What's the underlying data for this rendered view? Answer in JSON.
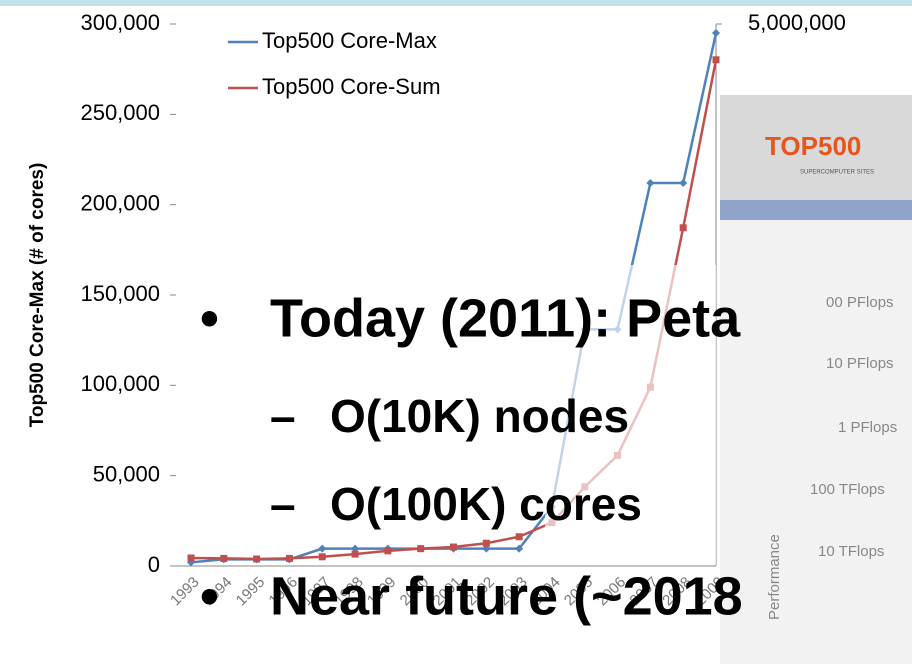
{
  "chart_data": {
    "type": "line",
    "y_label": "Top500 Core-Max (# of cores)",
    "categories": [
      "1993",
      "1994",
      "1995",
      "1996",
      "1997",
      "1998",
      "1999",
      "2000",
      "2001",
      "2002",
      "2003",
      "2004",
      "2005",
      "2006",
      "2007",
      "2008",
      "2009"
    ],
    "series": [
      {
        "name": "Top500 Core-Max",
        "color": "#4f81bd",
        "values": [
          2000,
          3700,
          3700,
          3700,
          9600,
          9600,
          9600,
          9600,
          9600,
          9600,
          9600,
          32800,
          131000,
          131000,
          212000,
          212000,
          295000
        ]
      },
      {
        "name": "Top500 Core-Sum",
        "color": "#c0504d",
        "axis": "y2",
        "values": [
          74000,
          70000,
          65000,
          70000,
          85000,
          110000,
          140000,
          160000,
          175000,
          210000,
          270000,
          400000,
          730000,
          1020000,
          1650000,
          3120000,
          4670000
        ]
      }
    ],
    "ylim": [
      0,
      300000
    ],
    "yticks": [
      0,
      {
        "value": 50000,
        "label": "50,000"
      },
      {
        "value": 100000,
        "label": "100,000"
      },
      {
        "value": 150000,
        "label": "150,000"
      },
      {
        "value": 200000,
        "label": "200,000"
      },
      {
        "value": 250000,
        "label": "250,000"
      },
      {
        "value": 300000,
        "label": "300,000"
      }
    ],
    "y2lim": [
      0,
      5000000
    ],
    "y2ticks": [
      {
        "value": 5000000,
        "label": "5,000,000"
      }
    ],
    "legend": "top-left"
  },
  "slide": {
    "bullets": [
      "Today (2011): Peta",
      "O(10K) nodes",
      "O(100K) cores",
      "Near future (~2018"
    ]
  },
  "inset": {
    "logo": "TOP500",
    "logo_sub": "SUPERCOMPUTER SITES",
    "axis_label": "Performance",
    "labels": [
      "00 PFlops",
      "10 PFlops",
      "1 PFlops",
      "100 TFlops",
      "10 TFlops"
    ]
  }
}
